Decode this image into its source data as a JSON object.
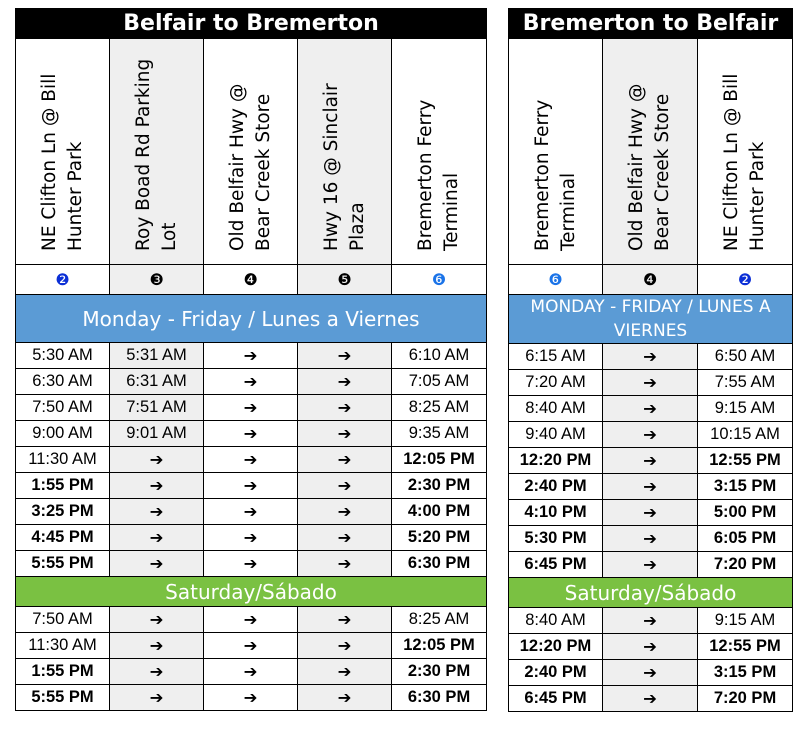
{
  "left": {
    "title": "Belfair to Bremerton",
    "stops": [
      {
        "name": "NE Clifton Ln @ Bill Hunter Park",
        "num": "❷",
        "num_color": "blue"
      },
      {
        "name": "Roy Boad Rd Parking Lot",
        "num": "❸",
        "num_color": "black"
      },
      {
        "name": "Old Belfair Hwy @ Bear Creek Store",
        "num": "❹",
        "num_color": "black"
      },
      {
        "name": "Hwy 16 @ Sinclair Plaza",
        "num": "❺",
        "num_color": "black"
      },
      {
        "name": "Bremerton Ferry Terminal",
        "num": "❻",
        "num_color": "lightblue"
      }
    ],
    "weekday_label": "Monday - Friday / Lunes a Viernes",
    "weekday_rows": [
      [
        "5:30 AM",
        "5:31 AM",
        "➔",
        "➔",
        "6:10 AM"
      ],
      [
        "6:30 AM",
        "6:31 AM",
        "➔",
        "➔",
        "7:05 AM"
      ],
      [
        "7:50 AM",
        "7:51 AM",
        "➔",
        "➔",
        "8:25 AM"
      ],
      [
        "9:00 AM",
        "9:01 AM",
        "➔",
        "➔",
        "9:35 AM"
      ],
      [
        "11:30 AM",
        "➔",
        "➔",
        "➔",
        "12:05 PM"
      ],
      [
        "1:55 PM",
        "➔",
        "➔",
        "➔",
        "2:30 PM"
      ],
      [
        "3:25 PM",
        "➔",
        "➔",
        "➔",
        "4:00 PM"
      ],
      [
        "4:45 PM",
        "➔",
        "➔",
        "➔",
        "5:20 PM"
      ],
      [
        "5:55 PM",
        "➔",
        "➔",
        "➔",
        "6:30 PM"
      ]
    ],
    "saturday_label": "Saturday/Sábado",
    "saturday_rows": [
      [
        "7:50 AM",
        "➔",
        "➔",
        "➔",
        "8:25 AM"
      ],
      [
        "11:30 AM",
        "➔",
        "➔",
        "➔",
        "12:05 PM"
      ],
      [
        "1:55 PM",
        "➔",
        "➔",
        "➔",
        "2:30 PM"
      ],
      [
        "5:55 PM",
        "➔",
        "➔",
        "➔",
        "6:30 PM"
      ]
    ]
  },
  "right": {
    "title": "Bremerton to Belfair",
    "stops": [
      {
        "name": "Bremerton Ferry Terminal",
        "num": "❻",
        "num_color": "lightblue"
      },
      {
        "name": "Old Belfair Hwy @ Bear Creek Store",
        "num": "❹",
        "num_color": "black"
      },
      {
        "name": "NE Clifton Ln @ Bill Hunter Park",
        "num": "❷",
        "num_color": "blue"
      }
    ],
    "weekday_label": "MONDAY - FRIDAY / LUNES A VIERNES",
    "weekday_rows": [
      [
        "6:15 AM",
        "➔",
        "6:50 AM"
      ],
      [
        "7:20 AM",
        "➔",
        "7:55 AM"
      ],
      [
        "8:40 AM",
        "➔",
        "9:15 AM"
      ],
      [
        "9:40 AM",
        "➔",
        "10:15 AM"
      ],
      [
        "12:20 PM",
        "➔",
        "12:55 PM"
      ],
      [
        "2:40 PM",
        "➔",
        "3:15 PM"
      ],
      [
        "4:10 PM",
        "➔",
        "5:00 PM"
      ],
      [
        "5:30 PM",
        "➔",
        "6:05 PM"
      ],
      [
        "6:45 PM",
        "➔",
        "7:20 PM"
      ]
    ],
    "saturday_label": "Saturday/Sábado",
    "saturday_rows": [
      [
        "8:40 AM",
        "➔",
        "9:15 AM"
      ],
      [
        "12:20 PM",
        "➔",
        "12:55 PM"
      ],
      [
        "2:40 PM",
        "➔",
        "3:15 PM"
      ],
      [
        "6:45 PM",
        "➔",
        "7:20 PM"
      ]
    ]
  }
}
